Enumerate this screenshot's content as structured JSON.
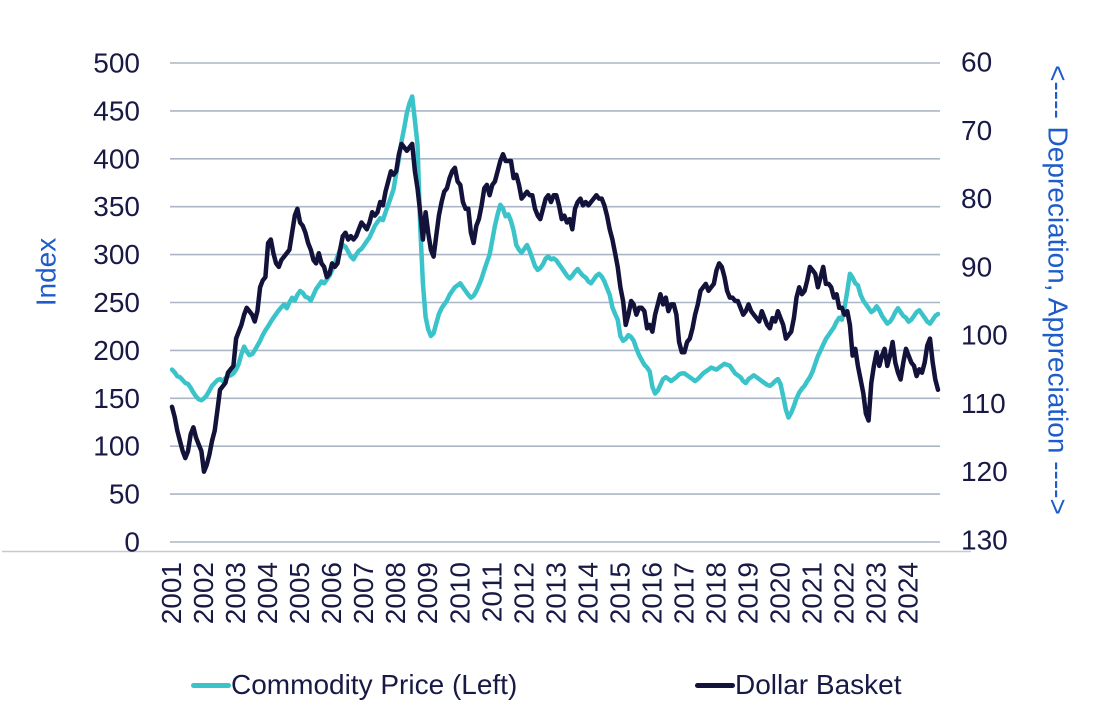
{
  "figure": {
    "background": "#ffffff",
    "gridline_color": "#adb6c4",
    "axisline_color": "#c4c9d2"
  },
  "legend": {
    "items": [
      {
        "label": "Commodity Price (Left)",
        "color": "#3bc3ca"
      },
      {
        "label": "Dollar Basket",
        "color": "#12123a"
      }
    ]
  },
  "chart_data": {
    "type": "line",
    "frequency": "monthly",
    "x_range": [
      "2001-01",
      "2024-12"
    ],
    "grid": true,
    "legend_position": "bottom",
    "x_labels": [
      "2001",
      "2002",
      "2003",
      "2004",
      "2005",
      "2006",
      "2007",
      "2008",
      "2009",
      "2010",
      "2011",
      "2012",
      "2013",
      "2014",
      "2015",
      "2016",
      "2017",
      "2018",
      "2019",
      "2020",
      "2021",
      "2022",
      "2023",
      "2024"
    ],
    "left_axis": {
      "title": "Index",
      "title_color": "#1d5cc9",
      "min": 0,
      "max": 500,
      "ticks": [
        0,
        50,
        100,
        150,
        200,
        250,
        300,
        350,
        400,
        450,
        500
      ]
    },
    "right_axis": {
      "title": "<---- Depreciation, Appreciation ---->",
      "title_color": "#1d5cc9",
      "min": 60,
      "max": 130,
      "inverted": true,
      "ticks": [
        60,
        70,
        80,
        90,
        100,
        110,
        120,
        130
      ]
    },
    "series": [
      {
        "name": "Commodity Price (Left)",
        "axis": "left",
        "color": "#3bc3ca",
        "values": [
          180,
          177,
          173,
          172,
          169,
          166,
          165,
          161,
          156,
          152,
          149,
          148,
          150,
          153,
          158,
          163,
          166,
          169,
          170,
          168,
          171,
          173,
          174,
          176,
          180,
          186,
          196,
          204,
          199,
          195,
          196,
          200,
          205,
          210,
          216,
          221,
          225,
          230,
          234,
          238,
          242,
          245,
          248,
          244,
          250,
          255,
          252,
          258,
          262,
          260,
          256,
          255,
          252,
          258,
          264,
          268,
          272,
          270,
          274,
          278,
          284,
          290,
          298,
          305,
          310,
          308,
          303,
          298,
          295,
          300,
          304,
          306,
          310,
          314,
          318,
          324,
          330,
          334,
          338,
          336,
          344,
          352,
          360,
          368,
          385,
          400,
          418,
          432,
          448,
          458,
          465,
          440,
          415,
          330,
          270,
          235,
          222,
          215,
          218,
          228,
          238,
          244,
          248,
          252,
          258,
          262,
          266,
          268,
          270,
          266,
          262,
          258,
          255,
          257,
          262,
          268,
          275,
          284,
          292,
          300,
          315,
          330,
          342,
          352,
          348,
          340,
          342,
          335,
          325,
          310,
          305,
          302,
          306,
          310,
          304,
          296,
          288,
          284,
          286,
          290,
          296,
          298,
          295,
          296,
          294,
          290,
          286,
          282,
          278,
          275,
          278,
          282,
          285,
          281,
          278,
          276,
          272,
          270,
          274,
          278,
          280,
          277,
          272,
          265,
          258,
          245,
          238,
          232,
          215,
          210,
          212,
          216,
          214,
          210,
          202,
          195,
          190,
          185,
          182,
          178,
          162,
          155,
          158,
          164,
          170,
          172,
          170,
          168,
          170,
          172,
          175,
          176,
          176,
          174,
          172,
          170,
          168,
          170,
          173,
          176,
          178,
          180,
          182,
          181,
          180,
          182,
          184,
          186,
          185,
          184,
          180,
          176,
          174,
          172,
          168,
          166,
          170,
          172,
          174,
          172,
          170,
          168,
          166,
          164,
          163,
          165,
          168,
          170,
          165,
          152,
          138,
          130,
          135,
          142,
          150,
          156,
          160,
          163,
          168,
          172,
          178,
          186,
          194,
          200,
          206,
          212,
          216,
          220,
          224,
          230,
          234,
          232,
          245,
          262,
          280,
          276,
          270,
          268,
          258,
          252,
          248,
          244,
          240,
          242,
          246,
          242,
          236,
          232,
          228,
          230,
          234,
          240,
          244,
          240,
          236,
          234,
          230,
          232,
          236,
          240,
          242,
          238,
          234,
          230,
          228,
          232,
          236,
          238
        ]
      },
      {
        "name": "Dollar Basket",
        "axis": "right",
        "color": "#12123a",
        "values": [
          110.5,
          112,
          114,
          115.5,
          117,
          118,
          117,
          114.5,
          113.5,
          115,
          116,
          117,
          120,
          119,
          117.5,
          115.5,
          114,
          111,
          108,
          107.5,
          107,
          105.5,
          105,
          104.5,
          100.5,
          99.5,
          98.5,
          97,
          96,
          96.5,
          97,
          98,
          96.5,
          93,
          92,
          91.5,
          86.5,
          86,
          88,
          89.5,
          90,
          89,
          88.5,
          88,
          87.5,
          85,
          82.5,
          81.5,
          83.5,
          84,
          85,
          86.5,
          87.5,
          89,
          89.5,
          88,
          89.5,
          90,
          91.5,
          91,
          89.5,
          90,
          89.5,
          87.5,
          85.5,
          85,
          86,
          85.5,
          86,
          85.5,
          84.5,
          83.5,
          84,
          84.5,
          83.5,
          82,
          82.5,
          82,
          80.5,
          81,
          79,
          77.5,
          76,
          76.5,
          76,
          73.5,
          72,
          72.5,
          73,
          72.5,
          72,
          76,
          78.5,
          82,
          86,
          82,
          85,
          87.5,
          88.5,
          85.5,
          82.5,
          80.5,
          79,
          78.5,
          77,
          76,
          75.5,
          77.5,
          78,
          80.5,
          81.5,
          81.5,
          85,
          86.5,
          84,
          83,
          81,
          78.5,
          78,
          79.5,
          78,
          77.5,
          76,
          74.5,
          73.5,
          74.5,
          74.5,
          74.5,
          77,
          76.5,
          78,
          80,
          79.5,
          79,
          79.5,
          79.5,
          81.5,
          82.5,
          83,
          81.5,
          80,
          79.5,
          80.5,
          79.5,
          79.5,
          81,
          83,
          82.5,
          83.5,
          83,
          84.5,
          81.5,
          80.5,
          80,
          81,
          80.5,
          81,
          80.5,
          80,
          79.5,
          80,
          80,
          81,
          82.5,
          84.5,
          86,
          88,
          90,
          93,
          95,
          98.5,
          97,
          95,
          95.5,
          97,
          96,
          96,
          96.5,
          99,
          98.5,
          99.5,
          97,
          95.5,
          94,
          95.5,
          94.5,
          96.5,
          95.5,
          95.5,
          97,
          101,
          102.5,
          102.5,
          101,
          100.5,
          99,
          97,
          95.5,
          93.5,
          93,
          92.5,
          93.5,
          93,
          92.5,
          90.5,
          89.5,
          90,
          91.5,
          93.5,
          94.5,
          94.5,
          95,
          95,
          96,
          97,
          96.5,
          95.5,
          96.5,
          97,
          97.5,
          98,
          96.5,
          97.5,
          98.5,
          99,
          97.5,
          98,
          96.5,
          97.5,
          98.5,
          100.5,
          100,
          99.5,
          97.5,
          94.5,
          93,
          94,
          93.5,
          92,
          90,
          90.5,
          91,
          93,
          91.5,
          90,
          92.5,
          92.5,
          93,
          94.5,
          94,
          96,
          96,
          97,
          96.5,
          98.5,
          103,
          102,
          104.5,
          106.5,
          108.5,
          111.5,
          112.5,
          107,
          104.5,
          102.5,
          104.5,
          103,
          102,
          104.5,
          103,
          101,
          104,
          105.5,
          106.5,
          104,
          102,
          103,
          104,
          104.5,
          106,
          105,
          105.5,
          104,
          101.5,
          100.5,
          104,
          106.5,
          108
        ]
      }
    ]
  }
}
